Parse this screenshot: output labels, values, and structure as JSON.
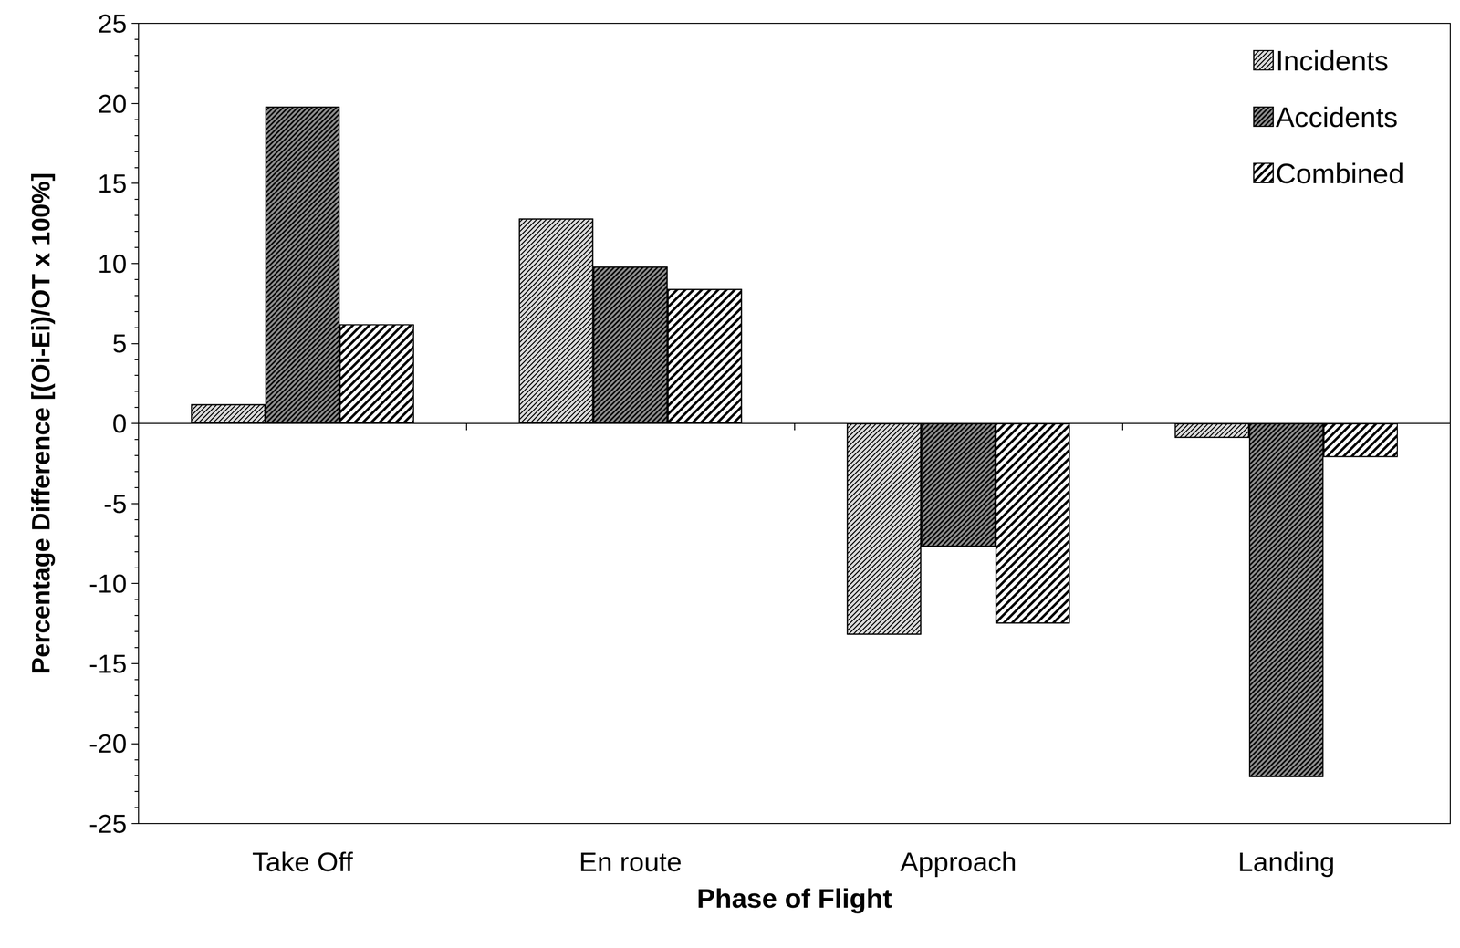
{
  "chart_data": {
    "type": "bar",
    "x_label": "Phase of Flight",
    "y_label": "Percentage Difference [(Oi-Ei)/OT x 100%]",
    "categories": [
      "Take Off",
      "En route",
      "Approach",
      "Landing"
    ],
    "series": [
      {
        "name": "Incidents",
        "color": "#d9d9d9",
        "values": [
          1.2,
          12.8,
          -13.2,
          -0.9
        ]
      },
      {
        "name": "Accidents",
        "color": "#8c8c8c",
        "values": [
          19.8,
          9.8,
          -7.7,
          -22.1
        ]
      },
      {
        "name": "Combined",
        "color": "#ffffff",
        "values": [
          6.2,
          8.4,
          -12.5,
          -2.1
        ]
      }
    ],
    "ylim": [
      -25,
      25
    ],
    "yticks": [
      -25,
      -20,
      -15,
      -10,
      -5,
      0,
      5,
      10,
      15,
      20,
      25
    ],
    "grid": false,
    "legend": "upper right"
  }
}
